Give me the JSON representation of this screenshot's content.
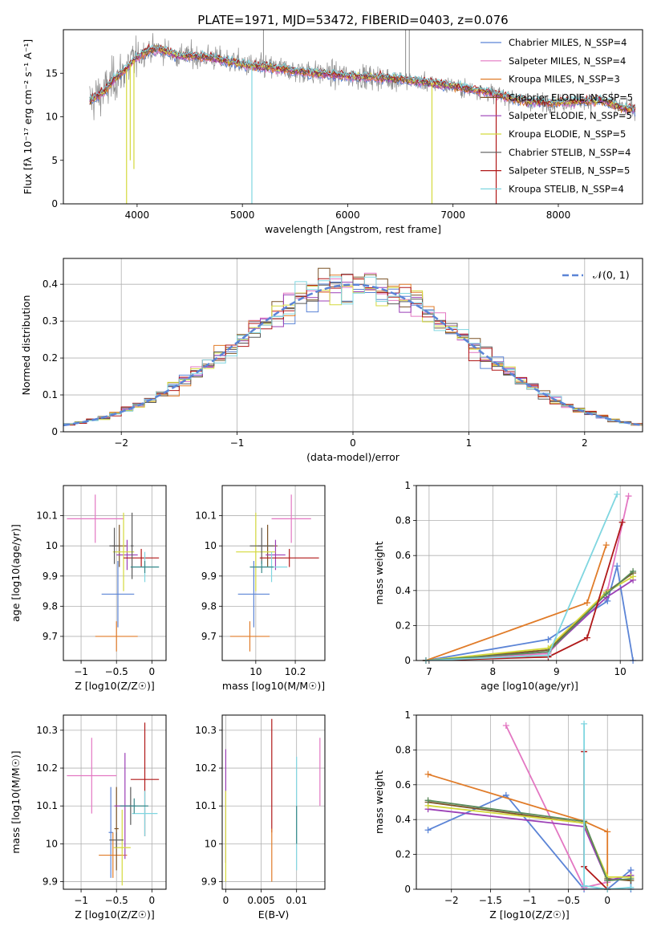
{
  "figure_title": "PLATE=1971, MJD=53472, FIBERID=0403, z=0.076",
  "colors": [
    "#5b84d6",
    "#e377c2",
    "#e07b28",
    "#7a5226",
    "#9b3fb6",
    "#d4d93c",
    "#5a5a5a",
    "#b01818",
    "#7fd6e0"
  ],
  "chart_data": [
    {
      "id": "spectrum",
      "type": "line",
      "title": "PLATE=1971, MJD=53472, FIBERID=0403, z=0.076",
      "xlabel": "wavelength [Angstrom, rest frame]",
      "ylabel": "Flux [fλ 10⁻¹⁷ erg cm⁻² s⁻¹ A⁻¹]",
      "xlim": [
        3300,
        8800
      ],
      "ylim": [
        0,
        20
      ],
      "xticks": [
        4000,
        5000,
        6000,
        7000,
        8000
      ],
      "yticks": [
        0,
        5,
        10,
        15
      ],
      "legend_position": "top-right",
      "series": [
        {
          "name": "Chabrier MILES, N_SSP=4",
          "color": "#5b84d6"
        },
        {
          "name": "Salpeter MILES, N_SSP=4",
          "color": "#e377c2"
        },
        {
          "name": "Kroupa MILES, N_SSP=3",
          "color": "#e07b28"
        },
        {
          "name": "Chabrier ELODIE, N_SSP=5",
          "color": "#7a5226"
        },
        {
          "name": "Salpeter ELODIE, N_SSP=5",
          "color": "#9b3fb6"
        },
        {
          "name": "Kroupa ELODIE, N_SSP=5",
          "color": "#d4d93c"
        },
        {
          "name": "Chabrier STELIB, N_SSP=4",
          "color": "#5a5a5a"
        },
        {
          "name": "Salpeter STELIB, N_SSP=5",
          "color": "#b01818"
        },
        {
          "name": "Kroupa STELIB, N_SSP=4",
          "color": "#7fd6e0"
        }
      ],
      "model_curve": {
        "x": [
          3550,
          3700,
          3800,
          3900,
          3950,
          4000,
          4100,
          4200,
          4300,
          4400,
          4500,
          4700,
          4900,
          5100,
          5300,
          5500,
          5700,
          5900,
          6100,
          6300,
          6500,
          6700,
          6900,
          7100,
          7300,
          7500,
          7700,
          7900,
          8100,
          8300,
          8400,
          8500,
          8600,
          8700
        ],
        "y": [
          11.8,
          13.0,
          14.5,
          15.5,
          16.3,
          16.8,
          17.6,
          17.8,
          17.4,
          17.0,
          17.0,
          16.8,
          16.3,
          15.8,
          15.6,
          15.3,
          15.0,
          14.8,
          14.6,
          14.5,
          14.3,
          14.0,
          13.7,
          13.3,
          12.9,
          12.3,
          11.8,
          11.6,
          11.7,
          11.8,
          11.9,
          11.5,
          11.0,
          10.8
        ]
      },
      "observed_range": [
        3550,
        8730
      ],
      "absorption_spikes": [
        {
          "x": 3900,
          "y": 0,
          "color": "#d4d93c"
        },
        {
          "x": 3935,
          "y": 5,
          "color": "#d4d93c"
        },
        {
          "x": 3970,
          "y": 4,
          "color": "#d4d93c"
        },
        {
          "x": 5090,
          "y": 0,
          "color": "#7fd6e0"
        },
        {
          "x": 6800,
          "y": 0,
          "color": "#d4d93c"
        },
        {
          "x": 7410,
          "y": 0,
          "color": "#b01818"
        }
      ],
      "emission_spikes": [
        {
          "x": 5200,
          "y": 20
        },
        {
          "x": 6550,
          "y": 20
        },
        {
          "x": 6585,
          "y": 20
        }
      ]
    },
    {
      "id": "residuals",
      "type": "line",
      "xlabel": "(data-model)/error",
      "ylabel": "Normed distribution",
      "xlim": [
        -2.5,
        2.5
      ],
      "ylim": [
        0,
        0.47
      ],
      "xticks": [
        -2,
        -1,
        0,
        1,
        2
      ],
      "yticks": [
        0.0,
        0.1,
        0.2,
        0.3,
        0.4
      ],
      "legend_position": "top-right",
      "gaussian": {
        "name": "𝒩(0, 1)",
        "color": "#5b84d6",
        "mean": 0,
        "sigma": 1
      },
      "histogram_bin_width": 0.1
    },
    {
      "id": "age_vs_Z",
      "type": "scatter",
      "xlabel": "Z [log10(Z/Z☉)]",
      "ylabel": "age  [log10(age/yr)]",
      "xlim": [
        -1.25,
        0.2
      ],
      "ylim": [
        9.62,
        10.2
      ],
      "xticks": [
        -1.0,
        -0.5,
        0.0
      ],
      "yticks": [
        9.7,
        9.8,
        9.9,
        10.0,
        10.1
      ],
      "points": [
        {
          "x": -0.48,
          "y": 9.84,
          "xerr": 0.23,
          "yerr": 0.11,
          "color": "#5b84d6"
        },
        {
          "x": -0.8,
          "y": 10.09,
          "xerr": 0.4,
          "yerr": 0.08,
          "color": "#e377c2"
        },
        {
          "x": -0.5,
          "y": 9.7,
          "xerr": 0.3,
          "yerr": 0.05,
          "color": "#e07b28"
        },
        {
          "x": -0.46,
          "y": 10.0,
          "xerr": 0.1,
          "yerr": 0.07,
          "color": "#7a5226"
        },
        {
          "x": -0.35,
          "y": 9.97,
          "xerr": 0.15,
          "yerr": 0.05,
          "color": "#9b3fb6"
        },
        {
          "x": -0.4,
          "y": 9.98,
          "xerr": 0.15,
          "yerr": 0.13,
          "color": "#d4d93c"
        },
        {
          "x": -0.53,
          "y": 10.0,
          "xerr": 0.07,
          "yerr": 0.06,
          "color": "#5a5a5a"
        },
        {
          "x": -0.15,
          "y": 9.96,
          "xerr": 0.25,
          "yerr": 0.03,
          "color": "#b01818"
        },
        {
          "x": -0.1,
          "y": 9.93,
          "xerr": 0.2,
          "yerr": 0.05,
          "color": "#7fd6e0"
        },
        {
          "x": -0.28,
          "y": 10.0,
          "xerr": 0.02,
          "yerr": 0.11,
          "color": "#5a5a5a"
        },
        {
          "x": -0.1,
          "y": 9.93,
          "xerr": 0.2,
          "yerr": 0.02,
          "color": "#3a8a8a"
        }
      ]
    },
    {
      "id": "age_vs_mass",
      "type": "scatter",
      "xlabel": "mass [log10(M/M☉)]",
      "ylabel": "",
      "xlim": [
        9.83,
        10.35
      ],
      "ylim": [
        9.62,
        10.2
      ],
      "xticks": [
        10.0,
        10.2
      ],
      "yticks": [
        9.7,
        9.8,
        9.9,
        10.0,
        10.1
      ],
      "points": [
        {
          "x": 9.99,
          "y": 9.84,
          "xerr": 0.08,
          "yerr": 0.11,
          "color": "#5b84d6"
        },
        {
          "x": 10.18,
          "y": 10.09,
          "xerr": 0.1,
          "yerr": 0.08,
          "color": "#e377c2"
        },
        {
          "x": 9.97,
          "y": 9.7,
          "xerr": 0.1,
          "yerr": 0.05,
          "color": "#e07b28"
        },
        {
          "x": 10.06,
          "y": 10.0,
          "xerr": 0.05,
          "yerr": 0.07,
          "color": "#7a5226"
        },
        {
          "x": 10.1,
          "y": 9.97,
          "xerr": 0.05,
          "yerr": 0.05,
          "color": "#9b3fb6"
        },
        {
          "x": 10.0,
          "y": 9.98,
          "xerr": 0.1,
          "yerr": 0.13,
          "color": "#d4d93c"
        },
        {
          "x": 10.03,
          "y": 10.0,
          "xerr": 0.06,
          "yerr": 0.06,
          "color": "#5a5a5a"
        },
        {
          "x": 10.17,
          "y": 9.96,
          "xerr": 0.15,
          "yerr": 0.03,
          "color": "#b01818"
        },
        {
          "x": 10.08,
          "y": 9.93,
          "xerr": 0.08,
          "yerr": 0.05,
          "color": "#7fd6e0"
        },
        {
          "x": 10.03,
          "y": 9.93,
          "xerr": 0.06,
          "yerr": 0.02,
          "color": "#3a8a8a"
        }
      ]
    },
    {
      "id": "mass_weight_vs_age",
      "type": "line",
      "xlabel": "age  [log10(age/yr)]",
      "ylabel": "mass weight",
      "xlim": [
        6.8,
        10.35
      ],
      "ylim": [
        0,
        1.0
      ],
      "xticks": [
        7,
        8,
        9,
        10
      ],
      "yticks": [
        0.0,
        0.2,
        0.4,
        0.6,
        0.8,
        1.0
      ],
      "series": [
        {
          "color": "#5b84d6",
          "x": [
            6.95,
            8.87,
            9.8,
            9.95,
            10.2
          ],
          "y": [
            0.0,
            0.12,
            0.34,
            0.54,
            0.0
          ]
        },
        {
          "color": "#e377c2",
          "x": [
            6.95,
            8.87,
            9.8,
            10.13
          ],
          "y": [
            0.0,
            0.04,
            0.4,
            0.94
          ]
        },
        {
          "color": "#e07b28",
          "x": [
            6.95,
            9.48,
            9.78
          ],
          "y": [
            0.0,
            0.33,
            0.66
          ]
        },
        {
          "color": "#7a5226",
          "x": [
            6.95,
            8.87,
            9.78,
            10.2
          ],
          "y": [
            0.0,
            0.06,
            0.39,
            0.5
          ]
        },
        {
          "color": "#9b3fb6",
          "x": [
            6.95,
            8.87,
            9.78,
            10.2
          ],
          "y": [
            0.0,
            0.05,
            0.36,
            0.46
          ]
        },
        {
          "color": "#d4d93c",
          "x": [
            6.95,
            8.87,
            9.78,
            10.2
          ],
          "y": [
            0.0,
            0.07,
            0.39,
            0.48
          ]
        },
        {
          "color": "#5a8a5a",
          "x": [
            6.95,
            8.87,
            9.78,
            10.2
          ],
          "y": [
            0.0,
            0.05,
            0.38,
            0.51
          ]
        },
        {
          "color": "#b01818",
          "x": [
            6.95,
            8.87,
            9.48,
            10.03
          ],
          "y": [
            0.0,
            0.02,
            0.13,
            0.79
          ]
        },
        {
          "color": "#7fd6e0",
          "x": [
            6.95,
            8.87,
            9.95
          ],
          "y": [
            0.0,
            0.03,
            0.95
          ]
        }
      ]
    },
    {
      "id": "mass_vs_Z",
      "type": "scatter",
      "xlabel": "Z [log10(Z/Z☉)]",
      "ylabel": "mass [log10(M/M☉)]",
      "xlim": [
        -1.25,
        0.2
      ],
      "ylim": [
        9.88,
        10.34
      ],
      "xticks": [
        -1.0,
        -0.5,
        0.0
      ],
      "yticks": [
        9.9,
        10.0,
        10.1,
        10.2,
        10.3
      ],
      "points": [
        {
          "x": -0.58,
          "y": 10.03,
          "xerr": 0.03,
          "yerr": 0.12,
          "color": "#5b84d6"
        },
        {
          "x": -0.85,
          "y": 10.18,
          "xerr": 0.35,
          "yerr": 0.1,
          "color": "#e377c2"
        },
        {
          "x": -0.55,
          "y": 9.97,
          "xerr": 0.2,
          "yerr": 0.06,
          "color": "#e07b28"
        },
        {
          "x": -0.5,
          "y": 10.04,
          "xerr": 0.03,
          "yerr": 0.11,
          "color": "#7a5226"
        },
        {
          "x": -0.38,
          "y": 10.1,
          "xerr": 0.15,
          "yerr": 0.14,
          "color": "#9b3fb6"
        },
        {
          "x": -0.42,
          "y": 9.99,
          "xerr": 0.12,
          "yerr": 0.1,
          "color": "#d4d93c"
        },
        {
          "x": -0.5,
          "y": 10.01,
          "xerr": 0.1,
          "yerr": 0.02,
          "color": "#5a5a5a"
        },
        {
          "x": -0.1,
          "y": 10.17,
          "xerr": 0.2,
          "yerr": 0.15,
          "color": "#b01818"
        },
        {
          "x": -0.1,
          "y": 10.08,
          "xerr": 0.18,
          "yerr": 0.06,
          "color": "#7fd6e0"
        },
        {
          "x": -0.3,
          "y": 10.1,
          "xerr": 0.02,
          "yerr": 0.05,
          "color": "#5a5a5a"
        },
        {
          "x": -0.25,
          "y": 10.1,
          "xerr": 0.2,
          "yerr": 0.02,
          "color": "#3a8a8a"
        }
      ]
    },
    {
      "id": "mass_vs_EBV",
      "type": "scatter",
      "xlabel": "E(B-V)",
      "ylabel": "",
      "xlim": [
        -0.0005,
        0.014
      ],
      "ylim": [
        9.88,
        10.34
      ],
      "xticks": [
        0.0,
        0.005,
        0.01
      ],
      "yticks": [
        9.9,
        10.0,
        10.1,
        10.2,
        10.3
      ],
      "points": [
        {
          "x": 0.0,
          "y": 10.1,
          "xerr": 0,
          "yerr": 0.15,
          "color": "#9b3fb6"
        },
        {
          "x": 0.0,
          "y": 10.02,
          "xerr": 0,
          "yerr": 0.12,
          "color": "#d4d93c"
        },
        {
          "x": 0.0065,
          "y": 10.18,
          "xerr": 0,
          "yerr": 0.15,
          "color": "#b01818"
        },
        {
          "x": 0.0065,
          "y": 9.97,
          "xerr": 0,
          "yerr": 0.07,
          "color": "#e07b28"
        },
        {
          "x": 0.01,
          "y": 10.08,
          "xerr": 0,
          "yerr": 0.15,
          "color": "#7fd6e0"
        },
        {
          "x": 0.01,
          "y": 10.05,
          "xerr": 0,
          "yerr": 0.05,
          "color": "#3a8a8a"
        },
        {
          "x": 0.0133,
          "y": 10.19,
          "xerr": 0,
          "yerr": 0.09,
          "color": "#e377c2"
        }
      ]
    },
    {
      "id": "mass_weight_vs_Z",
      "type": "line",
      "xlabel": "Z [log10(Z/Z☉)]",
      "ylabel": "mass weight",
      "xlim": [
        -2.45,
        0.45
      ],
      "ylim": [
        0,
        1.0
      ],
      "xticks": [
        -2.0,
        -1.5,
        -1.0,
        -0.5,
        0.0
      ],
      "yticks": [
        0.0,
        0.2,
        0.4,
        0.6,
        0.8,
        1.0
      ],
      "series": [
        {
          "color": "#5b84d6",
          "x": [
            -2.3,
            -1.3,
            -0.3,
            0.0,
            0.3,
            0.3
          ],
          "y": [
            0.34,
            0.54,
            0.0,
            0.0,
            0.11,
            0.0
          ]
        },
        {
          "color": "#e377c2",
          "x": [
            -1.3,
            -0.3,
            0.0
          ],
          "y": [
            0.94,
            0.01,
            0.04
          ]
        },
        {
          "color": "#e07b28",
          "x": [
            -2.3,
            -0.3,
            0.0,
            0.0
          ],
          "y": [
            0.66,
            0.39,
            0.33,
            0.0
          ]
        },
        {
          "color": "#7a5226",
          "x": [
            -2.3,
            -0.3,
            0.0,
            0.3
          ],
          "y": [
            0.5,
            0.38,
            0.06,
            0.05
          ]
        },
        {
          "color": "#9b3fb6",
          "x": [
            -2.3,
            -0.3,
            0.0,
            0.3
          ],
          "y": [
            0.46,
            0.36,
            0.05,
            0.08
          ]
        },
        {
          "color": "#d4d93c",
          "x": [
            -2.3,
            -0.3,
            0.0,
            0.3
          ],
          "y": [
            0.48,
            0.38,
            0.07,
            0.07
          ]
        },
        {
          "color": "#5a8a5a",
          "x": [
            -2.3,
            -0.3,
            0.0,
            0.3
          ],
          "y": [
            0.51,
            0.39,
            0.05,
            0.06
          ]
        },
        {
          "color": "#b01818",
          "x": [
            -0.3,
            -0.3,
            0.0
          ],
          "y": [
            0.79,
            0.13,
            0.0
          ]
        },
        {
          "color": "#7fd6e0",
          "x": [
            -0.3,
            -0.3,
            0.0,
            0.3
          ],
          "y": [
            0.95,
            0.02,
            0.0,
            0.01
          ]
        }
      ]
    }
  ]
}
